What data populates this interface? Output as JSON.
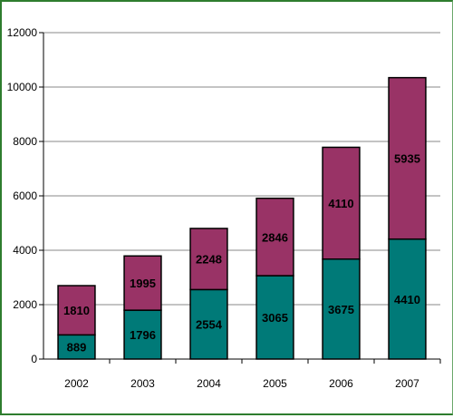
{
  "chart_data": {
    "type": "bar",
    "stacked": true,
    "categories": [
      "2002",
      "2003",
      "2004",
      "2005",
      "2006",
      "2007"
    ],
    "series": [
      {
        "values": [
          889,
          1796,
          2554,
          3065,
          3675,
          4410
        ],
        "color": "#007a78"
      },
      {
        "values": [
          1810,
          1995,
          2248,
          2846,
          4110,
          5935
        ],
        "color": "#993366"
      }
    ],
    "ylim": [
      0,
      12000
    ],
    "yticks": [
      "0",
      "2000",
      "4000",
      "6000",
      "8000",
      "10000",
      "12000"
    ],
    "grid": true,
    "title": "",
    "xlabel": "",
    "ylabel": ""
  }
}
